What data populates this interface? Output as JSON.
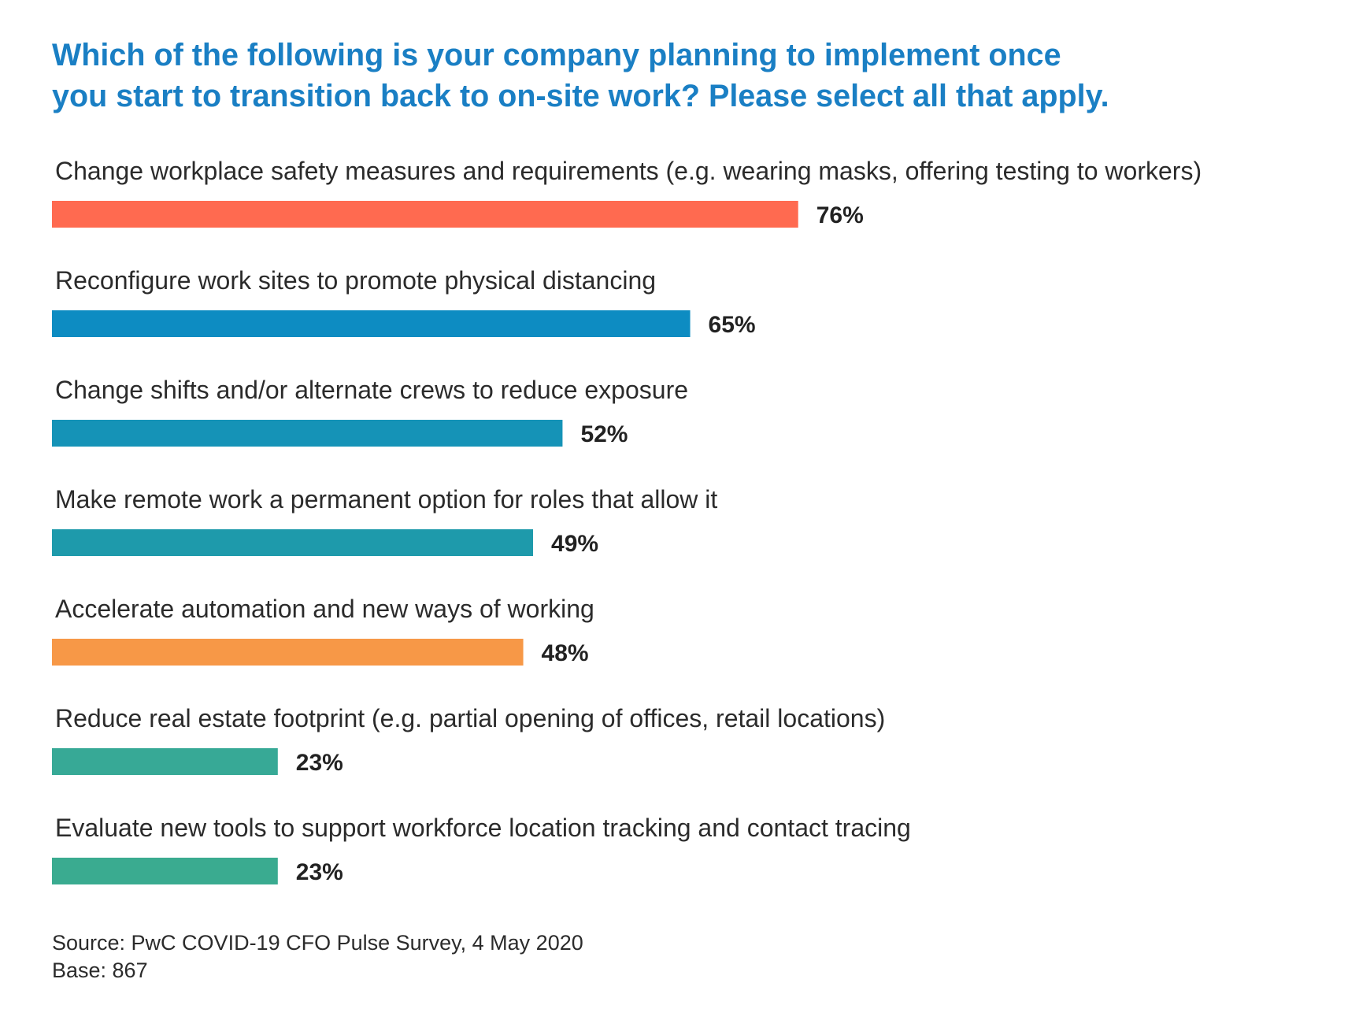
{
  "chart_data": {
    "type": "bar",
    "orientation": "horizontal",
    "title": "Which of the following is your company planning to implement once you start to transition back to on-site work? Please select all that apply.",
    "title_lines": [
      "Which of the following is your company planning to implement once",
      "you start to transition back to on-site work? Please select all that apply."
    ],
    "categories": [
      "Change workplace safety measures and requirements (e.g. wearing masks, offering testing to workers)",
      "Reconfigure work sites to promote physical distancing",
      "Change shifts and/or alternate crews to reduce exposure",
      "Make remote work a permanent option for roles that allow it",
      "Accelerate automation and new ways of working",
      "Reduce real estate footprint (e.g. partial opening of offices, retail locations)",
      "Evaluate new tools to support workforce location tracking and contact tracing"
    ],
    "values": [
      76,
      65,
      52,
      49,
      48,
      23,
      23
    ],
    "value_labels": [
      "76%",
      "65%",
      "52%",
      "49%",
      "48%",
      "23%",
      "23%"
    ],
    "colors": [
      "#ff6a50",
      "#0d8cc2",
      "#1593b7",
      "#1e9aab",
      "#f79847",
      "#37a996",
      "#3aab90"
    ],
    "unit": "%",
    "xlim": [
      0,
      100
    ],
    "grid": false,
    "legend": "none"
  },
  "footer": {
    "source": "Source: PwC COVID-19 CFO Pulse Survey, 4 May 2020",
    "base": "Base: 867"
  }
}
